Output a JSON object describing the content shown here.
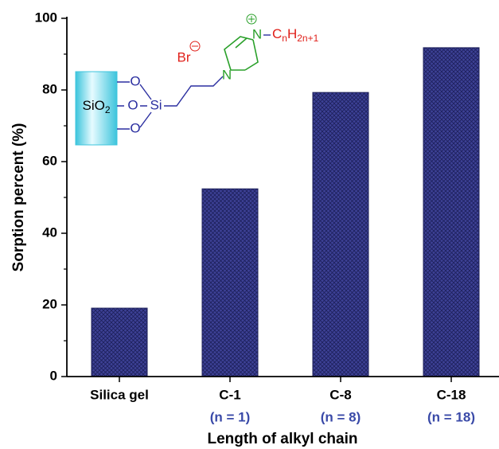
{
  "chart_data": {
    "type": "bar",
    "y_label": "Sorption percent (%)",
    "x_label": "Length of alkyl chain",
    "categories": [
      "Silica gel",
      "C-1",
      "C-8",
      "C-18"
    ],
    "category_notes": [
      null,
      "(n = 1)",
      "(n = 8)",
      "(n = 18)"
    ],
    "values": [
      19.1,
      52.4,
      79.3,
      91.8
    ],
    "color": "#3d4196",
    "ylim": [
      0,
      100
    ],
    "yticks": [
      0,
      20,
      40,
      60,
      80,
      100
    ],
    "inset": {
      "support": "SiO",
      "support_subscript": "2",
      "oxygen": "O",
      "silicon": "Si",
      "counterion": "Br",
      "nitrogen": "N",
      "chain": "C",
      "chain_n": "n",
      "chain_h": "H",
      "chain_sub": "2n+1"
    }
  }
}
